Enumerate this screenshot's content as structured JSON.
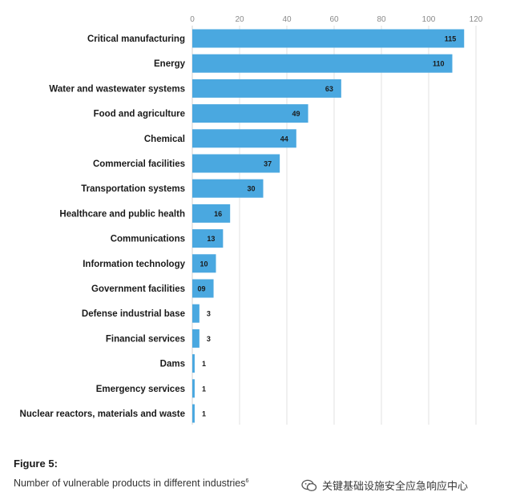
{
  "chart_data": {
    "type": "bar",
    "orientation": "horizontal",
    "categories": [
      "Critical manufacturing",
      "Energy",
      "Water and wastewater systems",
      "Food and agriculture",
      "Chemical",
      "Commercial facilities",
      "Transportation systems",
      "Healthcare and public health",
      "Communications",
      "Information technology",
      "Government facilities",
      "Defense industrial base",
      "Financial services",
      "Dams",
      "Emergency services",
      "Nuclear reactors, materials and waste"
    ],
    "values": [
      115,
      110,
      63,
      49,
      44,
      37,
      30,
      16,
      13,
      10,
      9,
      3,
      3,
      1,
      1,
      1
    ],
    "value_labels": [
      "115",
      "110",
      "63",
      "49",
      "44",
      "37",
      "30",
      "16",
      "13",
      "10",
      "09",
      "3",
      "3",
      "1",
      "1",
      "1"
    ],
    "xlim": [
      0,
      120
    ],
    "xticks": [
      0,
      20,
      40,
      60,
      80,
      100,
      120
    ],
    "x_axis_position": "top",
    "grid": true,
    "legend": "none",
    "bar_color": "#4aa8e0"
  },
  "figure": {
    "title": "Figure 5:",
    "caption": "Number of vulnerable products in different industries",
    "footnote_mark": "6"
  },
  "watermark": {
    "text": "关键基础设施安全应急响应中心",
    "icon": "wechat-icon"
  }
}
